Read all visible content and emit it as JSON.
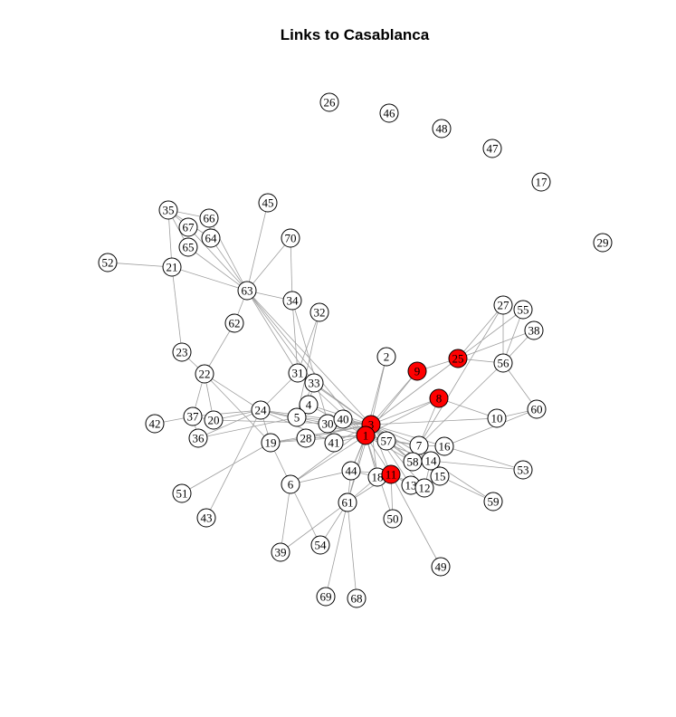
{
  "title": "Links to Casablanca",
  "colors": {
    "highlight": "#ff0000",
    "normal": "#ffffff",
    "edge": "#9e9e9e",
    "stroke": "#000000"
  },
  "highlighted": [
    "3",
    "1",
    "9",
    "25",
    "8",
    "11"
  ],
  "nodes": [
    "26",
    "46",
    "48",
    "47",
    "17",
    "29",
    "35",
    "66",
    "67",
    "64",
    "65",
    "45",
    "70",
    "52",
    "21",
    "63",
    "34",
    "32",
    "62",
    "2",
    "9",
    "25",
    "27",
    "55",
    "38",
    "56",
    "8",
    "23",
    "22",
    "31",
    "33",
    "4",
    "24",
    "37",
    "20",
    "36",
    "42",
    "5",
    "30",
    "40",
    "3",
    "1",
    "28",
    "41",
    "19",
    "57",
    "7",
    "16",
    "58",
    "14",
    "15",
    "10",
    "60",
    "53",
    "44",
    "18",
    "11",
    "13",
    "12",
    "6",
    "61",
    "50",
    "59",
    "51",
    "43",
    "54",
    "39",
    "49",
    "69",
    "68"
  ]
}
